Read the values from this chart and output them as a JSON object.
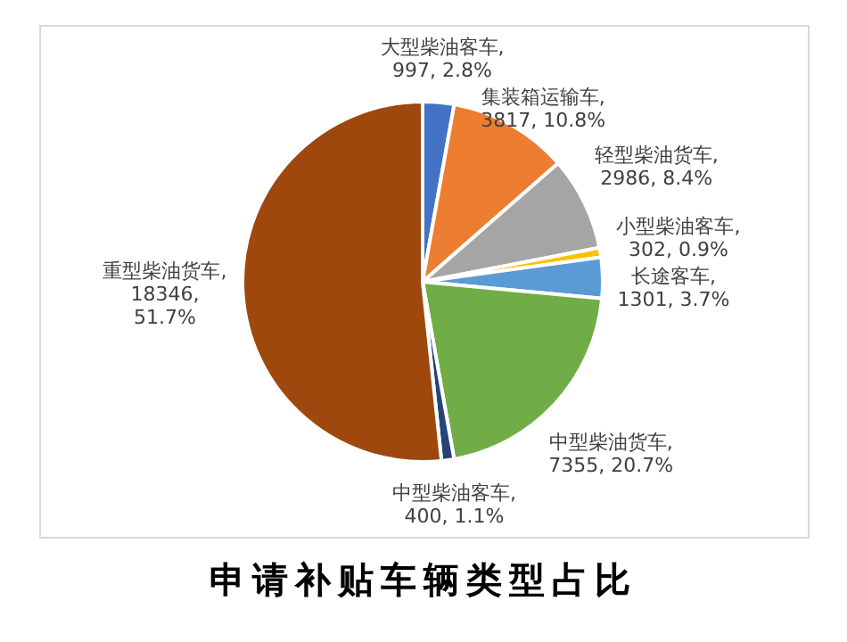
{
  "chart_data": {
    "type": "pie",
    "title": "申请补贴车辆类型占比",
    "categories": [
      "大型柴油客车",
      "集装箱运输车",
      "轻型柴油货车",
      "小型柴油客车",
      "长途客车",
      "中型柴油货车",
      "中型柴油客车",
      "重型柴油货车"
    ],
    "values": [
      997,
      3817,
      2986,
      302,
      1301,
      7355,
      400,
      18346
    ],
    "colors": [
      "#4472c4",
      "#ed7d31",
      "#a5a5a5",
      "#ffc000",
      "#5b9bd5",
      "#70ad47",
      "#264478",
      "#9e480e"
    ],
    "value_labels": [
      ", 997, 2.8%",
      ", 3817, 10.8%",
      ", 2986, 8.4%",
      ", 302, 0.9%",
      ", 1301, 3.7%",
      ", 7355, 20.7%",
      ", 400, 1.1%",
      ", 18346, 51.7%"
    ],
    "data_labels": true,
    "legend": false
  }
}
